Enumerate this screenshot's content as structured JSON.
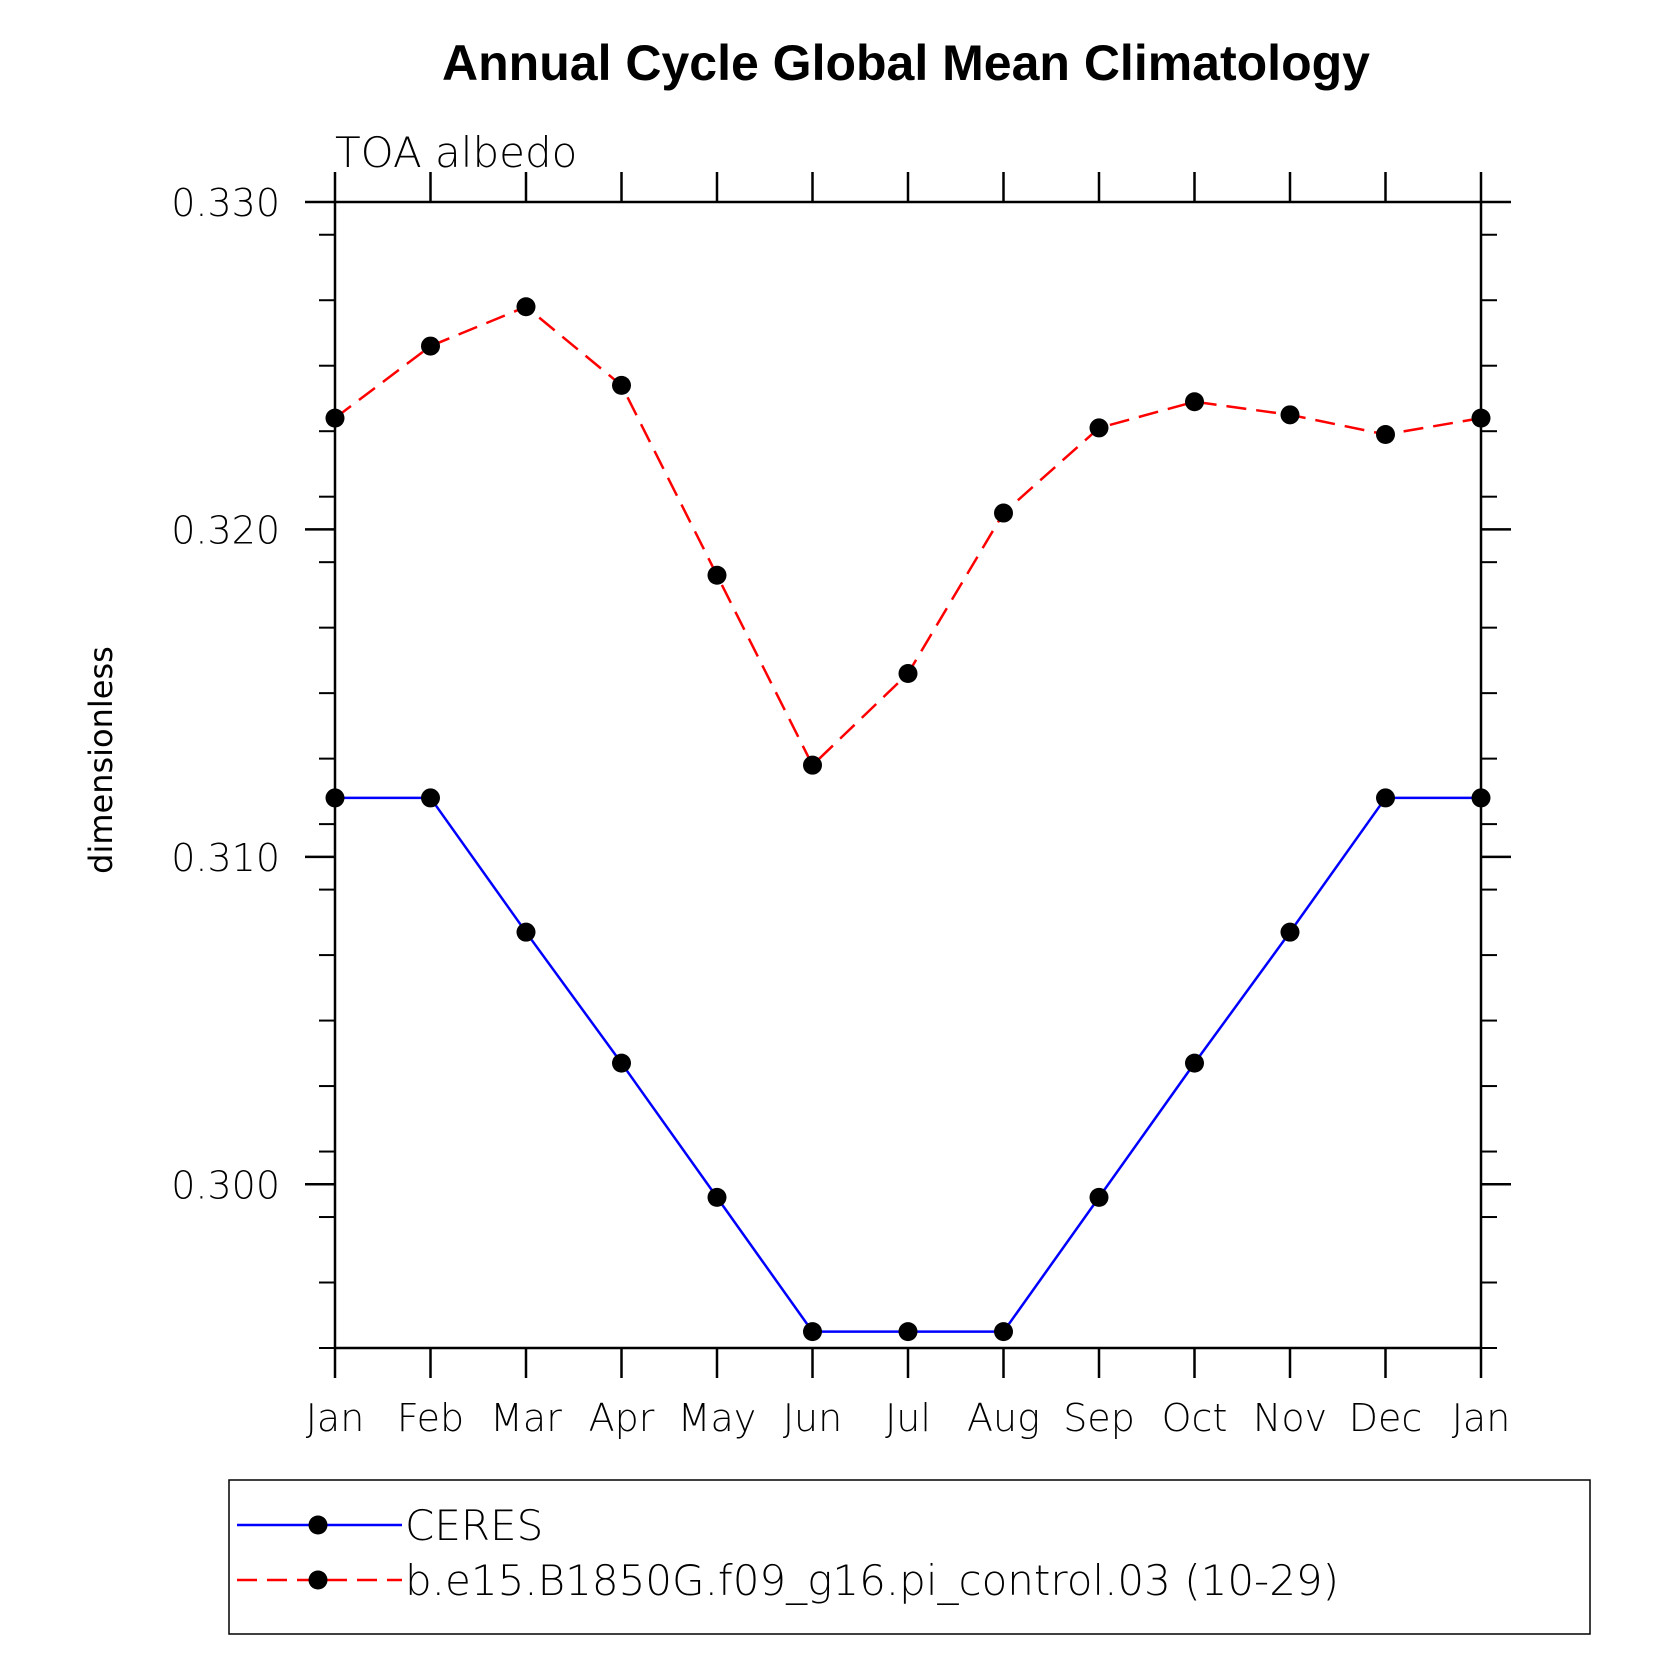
{
  "chart_data": {
    "type": "line",
    "title": "Annual Cycle Global Mean Climatology",
    "subtitle": "TOA albedo",
    "xlabel": "",
    "ylabel": "dimensionless",
    "categories": [
      "Jan",
      "Feb",
      "Mar",
      "Apr",
      "May",
      "Jun",
      "Jul",
      "Aug",
      "Sep",
      "Oct",
      "Nov",
      "Dec",
      "Jan"
    ],
    "yticks": [
      "0.300",
      "0.310",
      "0.320",
      "0.330"
    ],
    "ytick_values": [
      0.3,
      0.31,
      0.32,
      0.33
    ],
    "ylim": [
      0.295,
      0.33
    ],
    "minor_tick_step": 0.002,
    "grid": false,
    "legend_position": "bottom",
    "series": [
      {
        "name": "CERES",
        "color": "#0000ff",
        "style": "solid",
        "marker": "filled-circle",
        "values": [
          0.3118,
          0.3118,
          0.3077,
          0.3037,
          0.2996,
          0.2955,
          0.2955,
          0.2955,
          0.2996,
          0.3037,
          0.3077,
          0.3118,
          0.3118
        ]
      },
      {
        "name": "b.e15.B1850G.f09_g16.pi_control.03 (10-29)",
        "color": "#ff0000",
        "style": "dashed",
        "marker": "filled-circle",
        "values": [
          0.3234,
          0.3256,
          0.3268,
          0.3244,
          0.3186,
          0.3128,
          0.3156,
          0.3205,
          0.3231,
          0.3239,
          0.3235,
          0.3229,
          0.3234
        ]
      }
    ]
  }
}
